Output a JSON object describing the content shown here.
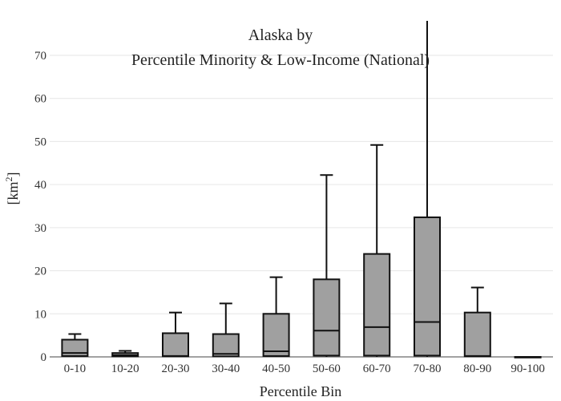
{
  "chart_data": {
    "type": "box",
    "title_lines": [
      "Alaska  by",
      "Percentile Minority & Low-Income (National)"
    ],
    "xlabel": "Percentile Bin",
    "ylabel_base": "[km",
    "ylabel_sup": "2",
    "ylabel_close": "]",
    "ylim": [
      0,
      78
    ],
    "yticks": [
      0,
      10,
      20,
      30,
      40,
      50,
      60,
      70
    ],
    "grid": true,
    "legend": "none",
    "colors": {
      "box_fill": "#a0a0a0",
      "box_stroke": "#111111",
      "grid": "#e6e6e6",
      "axis": "#444444"
    },
    "categories": [
      "0-10",
      "10-20",
      "20-30",
      "30-40",
      "40-50",
      "50-60",
      "60-70",
      "70-80",
      "80-90",
      "90-100"
    ],
    "boxes": [
      {
        "min": 0.0,
        "q1": 0.2,
        "median": 0.9,
        "q3": 4.0,
        "max": 5.3
      },
      {
        "min": 0.0,
        "q1": 0.1,
        "median": 0.4,
        "q3": 0.9,
        "max": 1.4
      },
      {
        "min": 0.0,
        "q1": 0.1,
        "median": 0.2,
        "q3": 5.5,
        "max": 10.3
      },
      {
        "min": 0.0,
        "q1": 0.1,
        "median": 0.7,
        "q3": 5.3,
        "max": 12.4
      },
      {
        "min": 0.0,
        "q1": 0.2,
        "median": 1.3,
        "q3": 10.0,
        "max": 18.5
      },
      {
        "min": 0.0,
        "q1": 0.3,
        "median": 6.1,
        "q3": 18.0,
        "max": 42.2
      },
      {
        "min": 0.0,
        "q1": 0.3,
        "median": 6.9,
        "q3": 23.9,
        "max": 49.2
      },
      {
        "min": 0.0,
        "q1": 0.3,
        "median": 8.1,
        "q3": 32.4,
        "max": 78.0
      },
      {
        "min": 0.0,
        "q1": 0.1,
        "median": 0.2,
        "q3": 10.3,
        "max": 16.1
      },
      {
        "min": 0.0,
        "q1": 0.0,
        "median": 0.0,
        "q3": 0.0,
        "max": 0.0
      }
    ]
  }
}
